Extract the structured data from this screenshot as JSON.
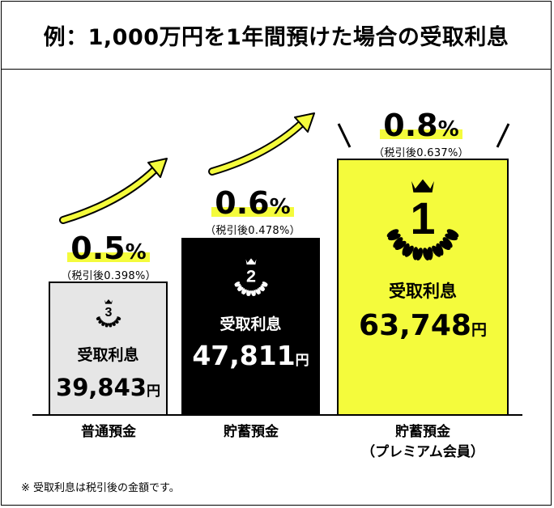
{
  "title": "例：1,000万円を1年間預けた場合の受取利息",
  "chart_data": {
    "type": "bar",
    "title": "例：1,000万円を1年間預けた場合の受取利息",
    "unit": "円",
    "categories": [
      "普通預金",
      "貯蓄預金",
      "貯蓄預金（プレミアム会員）"
    ],
    "values": [
      39843,
      47811,
      63748
    ],
    "rates": [
      "0.5",
      "0.6",
      "0.8"
    ],
    "after_tax_rates": [
      "（税引後0.398%）",
      "（税引後0.478%）",
      "（税引後0.637%）"
    ],
    "ranks": [
      "3",
      "2",
      "1"
    ]
  },
  "bars": [
    {
      "rank": "3",
      "label": "受取利息",
      "amount": "39,843",
      "unit": "円",
      "rate": "0.5",
      "pct": "%",
      "after_tax": "（税引後0.398%）",
      "category": [
        "普通預金"
      ],
      "fill": "#e6e6e6",
      "text_color": "#000000"
    },
    {
      "rank": "2",
      "label": "受取利息",
      "amount": "47,811",
      "unit": "円",
      "rate": "0.6",
      "pct": "%",
      "after_tax": "（税引後0.478%）",
      "category": [
        "貯蓄預金"
      ],
      "fill": "#000000",
      "text_color": "#ffffff"
    },
    {
      "rank": "1",
      "label": "受取利息",
      "amount": "63,748",
      "unit": "円",
      "rate": "0.8",
      "pct": "%",
      "after_tax": "（税引後0.637%）",
      "category": [
        "貯蓄預金",
        "（プレミアム会員）"
      ],
      "fill": "#f4fb3c",
      "text_color": "#000000"
    }
  ],
  "note": "※ 受取利息は税引後の金額です。",
  "colors": {
    "highlight": "#f4fb3c",
    "arrow": "#f4fb3c",
    "grey_bar": "#e6e6e6",
    "black": "#000000"
  },
  "icons": [
    "crown-icon",
    "laurel-wreath-icon",
    "arrow-up-right-icon"
  ]
}
